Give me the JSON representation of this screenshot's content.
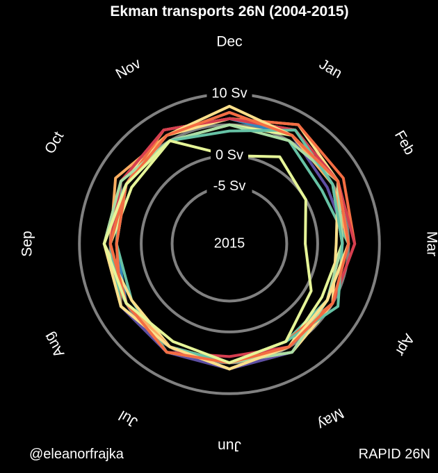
{
  "header": {
    "title": "Ekman transports 26N (2004-2015)"
  },
  "footer": {
    "credit": "@eleanorfrajka",
    "source": "RAPID 26N"
  },
  "center_label": "2015",
  "colors": {
    "background": "#000000",
    "grid": "#808080",
    "text": "#ffffff"
  },
  "chart_data": {
    "type": "line",
    "projection": "polar",
    "title": "Ekman transports 26N (2004-2015)",
    "theta_categories": [
      "Dec",
      "Jan",
      "Feb",
      "Mar",
      "Apr",
      "May",
      "Jun",
      "Jul",
      "Aug",
      "Sep",
      "Oct",
      "Nov"
    ],
    "theta_direction": "clockwise",
    "theta_zero": "top",
    "radial_axis": {
      "unit": "Sv",
      "min": -10,
      "max": 12.5,
      "ticks": [
        -5,
        0,
        10
      ],
      "tick_labels": [
        "-5 Sv",
        "0 Sv",
        "10 Sv"
      ],
      "grid": [
        -5,
        0,
        5,
        10
      ]
    },
    "series_order": "oldest to newest (2004 to 2015)",
    "series": [
      {
        "color": "#5e4fa2",
        "values": [
          7,
          6,
          4,
          5,
          5,
          6,
          6,
          6,
          6,
          5,
          5,
          6
        ]
      },
      {
        "color": "#3288bd",
        "values": [
          6,
          6,
          5,
          5,
          4,
          5,
          6,
          5,
          5,
          4,
          5,
          6
        ]
      },
      {
        "color": "#66c2a5",
        "values": [
          5,
          5,
          3,
          5,
          4,
          4,
          5,
          6,
          4,
          4,
          6,
          5
        ]
      },
      {
        "color": "#abdda4",
        "values": [
          6,
          7,
          6,
          4,
          4,
          5,
          5,
          5,
          6,
          4,
          5,
          7
        ]
      },
      {
        "color": "#e6f598",
        "values": [
          5,
          6,
          5,
          4,
          3,
          5,
          6,
          5,
          5,
          5,
          4,
          5
        ]
      },
      {
        "color": "#fee08b",
        "values": [
          6,
          8,
          6,
          3,
          5,
          6,
          5,
          5,
          4,
          6,
          6,
          6
        ]
      },
      {
        "color": "#fdae61",
        "values": [
          7,
          6,
          5,
          5,
          4,
          5,
          6,
          5,
          5,
          5,
          7,
          6
        ]
      },
      {
        "color": "#f46d43",
        "values": [
          6,
          8,
          7,
          6,
          5,
          4,
          5,
          5,
          6,
          4,
          5,
          7
        ]
      },
      {
        "color": "#d53e4f",
        "values": [
          6,
          7,
          6,
          6,
          5,
          5,
          4,
          6,
          5,
          5,
          6,
          7
        ]
      },
      {
        "color": "#abdda4",
        "values": [
          5,
          5,
          6,
          4,
          4,
          6,
          5,
          6,
          5,
          6,
          6,
          5
        ]
      },
      {
        "color": "#66c2a5",
        "values": [
          4,
          7,
          5,
          4,
          6,
          4,
          5,
          5,
          6,
          5,
          5,
          5
        ]
      },
      {
        "color": "#fee08b",
        "values": [
          8,
          6,
          6,
          5,
          4,
          5,
          6,
          5,
          6,
          6,
          5,
          6
        ]
      },
      {
        "color": "#f46d43",
        "values": [
          7,
          6,
          6,
          5,
          5,
          5,
          5,
          6,
          5,
          5,
          5,
          6
        ]
      },
      {
        "color": "#e6f598",
        "values": [
          0,
          2,
          0,
          -2,
          1,
          4,
          5,
          4,
          5,
          6,
          5,
          5
        ]
      }
    ]
  }
}
